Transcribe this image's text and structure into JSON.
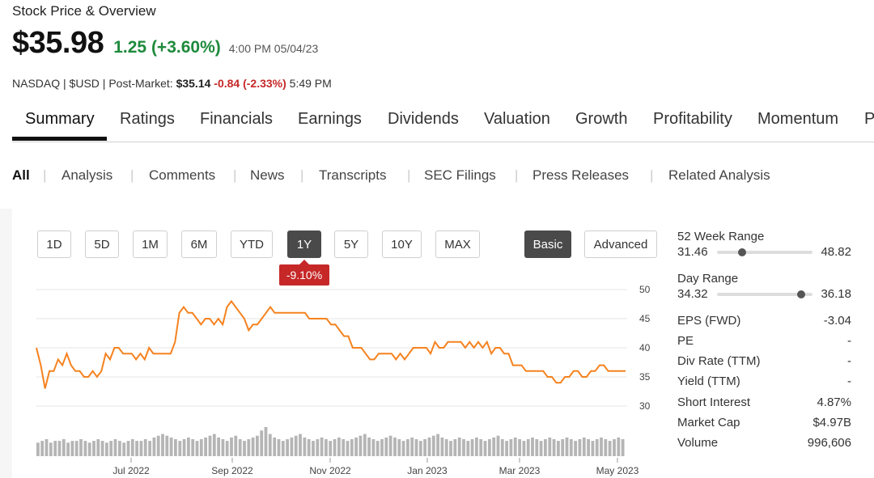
{
  "header": {
    "title": "Stock Price & Overview",
    "price": "$35.98",
    "change": "1.25 (+3.60%)",
    "time": "4:00 PM 05/04/23",
    "exchange": "NASDAQ",
    "currency": "$USD",
    "post_market_label": "Post-Market:",
    "post_market_price": "$35.14",
    "post_market_change": "-0.84 (-2.33%)",
    "post_market_time": "5:49 PM"
  },
  "tabs": [
    "Summary",
    "Ratings",
    "Financials",
    "Earnings",
    "Dividends",
    "Valuation",
    "Growth",
    "Profitability",
    "Momentum",
    "P"
  ],
  "subtabs": [
    "All",
    "Analysis",
    "Comments",
    "News",
    "Transcripts",
    "SEC Filings",
    "Press Releases",
    "Related Analysis"
  ],
  "range_buttons": [
    "1D",
    "5D",
    "1M",
    "6M",
    "YTD",
    "1Y",
    "5Y",
    "10Y",
    "MAX"
  ],
  "active_range": "1Y",
  "view_buttons": [
    "Basic",
    "Advanced"
  ],
  "period_change": "-9.10%",
  "stats": {
    "week52": {
      "label": "52 Week Range",
      "low": "31.46",
      "high": "48.82",
      "position": 0.26
    },
    "day": {
      "label": "Day Range",
      "low": "34.32",
      "high": "36.18",
      "position": 0.88
    },
    "rows": [
      {
        "label": "EPS (FWD)",
        "value": "-3.04"
      },
      {
        "label": "PE",
        "value": "-"
      },
      {
        "label": "Div Rate (TTM)",
        "value": "-"
      },
      {
        "label": "Yield (TTM)",
        "value": "-"
      },
      {
        "label": "Short Interest",
        "value": "4.87%"
      },
      {
        "label": "Market Cap",
        "value": "$4.97B"
      },
      {
        "label": "Volume",
        "value": "996,606"
      }
    ]
  },
  "colors": {
    "line": "#f5821f",
    "volume": "#b5b5b5",
    "positive": "#1e8a3c",
    "negative": "#c62828"
  },
  "chart_data": {
    "type": "line",
    "y_ticks": [
      "50",
      "45",
      "40",
      "35",
      "30"
    ],
    "ylim": [
      30,
      50
    ],
    "x_ticks": [
      "Jul 2022",
      "Sep 2022",
      "Nov 2022",
      "Jan 2023",
      "Mar 2023",
      "May 2023"
    ],
    "grid": true,
    "series": [
      {
        "values": [
          40,
          37,
          33,
          36,
          36,
          38,
          37,
          39,
          37,
          36,
          36,
          35,
          35,
          36,
          35,
          36,
          39,
          38,
          40,
          40,
          39,
          39,
          39,
          38,
          39,
          38,
          40,
          39,
          39,
          39,
          39,
          39,
          41,
          46,
          47,
          46,
          46,
          45,
          44,
          45,
          45,
          44,
          45,
          44,
          47,
          48,
          47,
          46,
          45,
          43,
          44,
          44,
          45,
          46,
          47,
          46,
          46,
          46,
          46,
          46,
          46,
          46,
          46,
          45,
          45,
          45,
          45,
          45,
          44,
          44,
          43,
          42,
          42,
          40,
          40,
          40,
          39,
          38,
          38,
          39,
          39,
          39,
          39,
          38,
          39,
          38,
          39,
          40,
          40,
          40,
          40,
          39,
          41,
          40,
          40,
          41,
          41,
          41,
          41,
          40,
          41,
          40,
          41,
          40,
          41,
          39,
          40,
          40,
          39,
          39,
          37,
          37,
          37,
          36,
          36,
          36,
          36,
          36,
          35,
          35,
          34,
          34,
          35,
          35,
          36,
          36,
          35,
          35,
          36,
          36,
          37,
          37,
          36,
          36,
          36,
          36,
          36
        ]
      }
    ],
    "volume": [
      5,
      6,
      7,
      5,
      6,
      6,
      7,
      5,
      6,
      6,
      7,
      6,
      5,
      6,
      7,
      6,
      5,
      6,
      7,
      6,
      5,
      6,
      7,
      6,
      6,
      7,
      6,
      8,
      9,
      10,
      9,
      8,
      7,
      6,
      7,
      8,
      7,
      6,
      7,
      8,
      9,
      10,
      8,
      7,
      6,
      8,
      9,
      7,
      6,
      7,
      8,
      9,
      12,
      14,
      10,
      8,
      7,
      6,
      7,
      8,
      9,
      10,
      8,
      7,
      6,
      7,
      8,
      7,
      6,
      7,
      8,
      7,
      6,
      7,
      8,
      9,
      10,
      8,
      7,
      6,
      7,
      8,
      9,
      8,
      7,
      6,
      7,
      8,
      7,
      6,
      7,
      8,
      9,
      10,
      8,
      7,
      6,
      7,
      8,
      7,
      6,
      7,
      8,
      7,
      6,
      7,
      8,
      9,
      7,
      6,
      7,
      8,
      7,
      6,
      7,
      8,
      7,
      6,
      7,
      8,
      7,
      6,
      7,
      8,
      7,
      6,
      7,
      8,
      7,
      6,
      7,
      8,
      7,
      6,
      7,
      8,
      7
    ]
  }
}
